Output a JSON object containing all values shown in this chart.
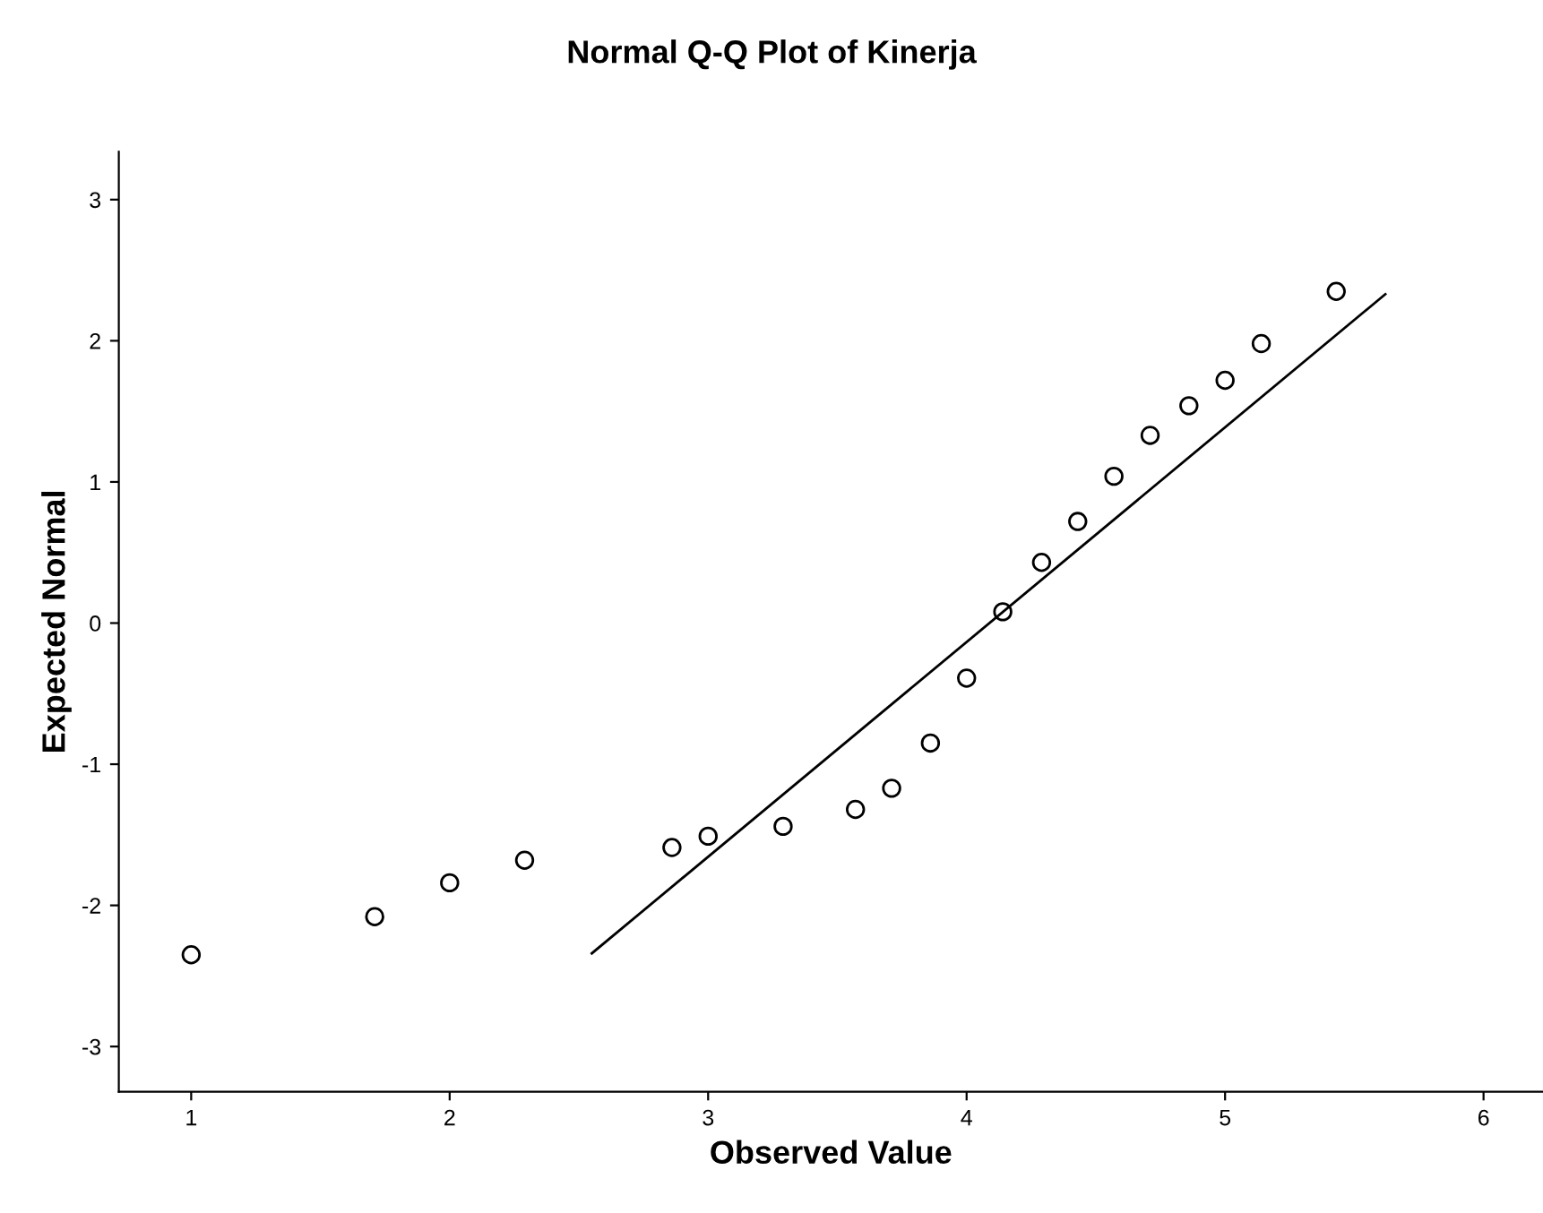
{
  "chart_data": {
    "type": "scatter",
    "title": "Normal Q-Q Plot of Kinerja",
    "xlabel": "Observed Value",
    "ylabel": "Expected Normal",
    "xlim": [
      0.72,
      6.23
    ],
    "ylim": [
      -3.32,
      3.34
    ],
    "xticks": [
      1,
      2,
      3,
      4,
      5,
      6
    ],
    "yticks": [
      -3,
      -2,
      -1,
      0,
      1,
      2,
      3
    ],
    "grid": false,
    "legend": false,
    "series": [
      {
        "marker": "circle",
        "color": "#000000",
        "x": [
          1.0,
          1.71,
          2.0,
          2.29,
          2.86,
          3.0,
          3.29,
          3.57,
          3.71,
          3.86,
          4.0,
          4.14,
          4.29,
          4.43,
          4.57,
          4.71,
          4.86,
          5.0,
          5.14,
          5.43
        ],
        "values": [
          -2.35,
          -2.08,
          -1.84,
          -1.68,
          -1.59,
          -1.51,
          -1.44,
          -1.32,
          -1.17,
          -0.85,
          -0.39,
          0.08,
          0.43,
          0.72,
          1.04,
          1.33,
          1.54,
          1.72,
          1.98,
          2.35
        ]
      },
      {
        "type": "line",
        "line_style": "solid",
        "color": "#000000",
        "x": [
          2.55,
          5.62
        ],
        "values": [
          -2.34,
          2.33
        ]
      }
    ]
  }
}
